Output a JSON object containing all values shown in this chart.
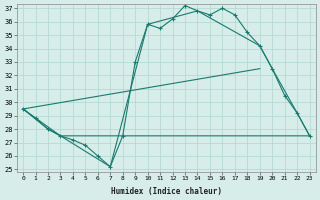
{
  "xlabel": "Humidex (Indice chaleur)",
  "xlim": [
    -0.5,
    23.5
  ],
  "ylim": [
    24.8,
    37.3
  ],
  "yticks": [
    25,
    26,
    27,
    28,
    29,
    30,
    31,
    32,
    33,
    34,
    35,
    36,
    37
  ],
  "xticks": [
    0,
    1,
    2,
    3,
    4,
    5,
    6,
    7,
    8,
    9,
    10,
    11,
    12,
    13,
    14,
    15,
    16,
    17,
    18,
    19,
    20,
    21,
    22,
    23
  ],
  "bg_color": "#d6edea",
  "grid_color": "#b0d5cf",
  "line_color": "#1a7a6e",
  "line1_x": [
    0,
    1,
    2,
    3,
    4,
    5,
    6,
    7,
    8,
    9,
    10,
    11,
    12,
    13,
    14,
    15,
    16,
    17,
    18,
    19,
    20,
    21,
    22,
    23
  ],
  "line1_y": [
    29.5,
    28.8,
    28.0,
    27.5,
    27.2,
    26.8,
    26.0,
    25.2,
    27.5,
    33.0,
    35.8,
    35.5,
    36.2,
    37.2,
    36.8,
    36.5,
    37.0,
    36.5,
    35.2,
    34.2,
    32.5,
    30.5,
    29.2,
    27.5
  ],
  "line2_x": [
    0,
    2,
    3,
    7,
    10,
    14,
    19,
    20,
    22,
    23
  ],
  "line2_y": [
    29.5,
    28.0,
    27.5,
    25.2,
    35.8,
    36.8,
    34.2,
    32.5,
    29.2,
    27.5
  ],
  "line3_x": [
    0,
    3,
    8,
    19,
    23
  ],
  "line3_y": [
    29.5,
    27.5,
    27.5,
    27.5,
    27.5
  ],
  "line4_x": [
    0,
    19
  ],
  "line4_y": [
    29.5,
    32.5
  ]
}
